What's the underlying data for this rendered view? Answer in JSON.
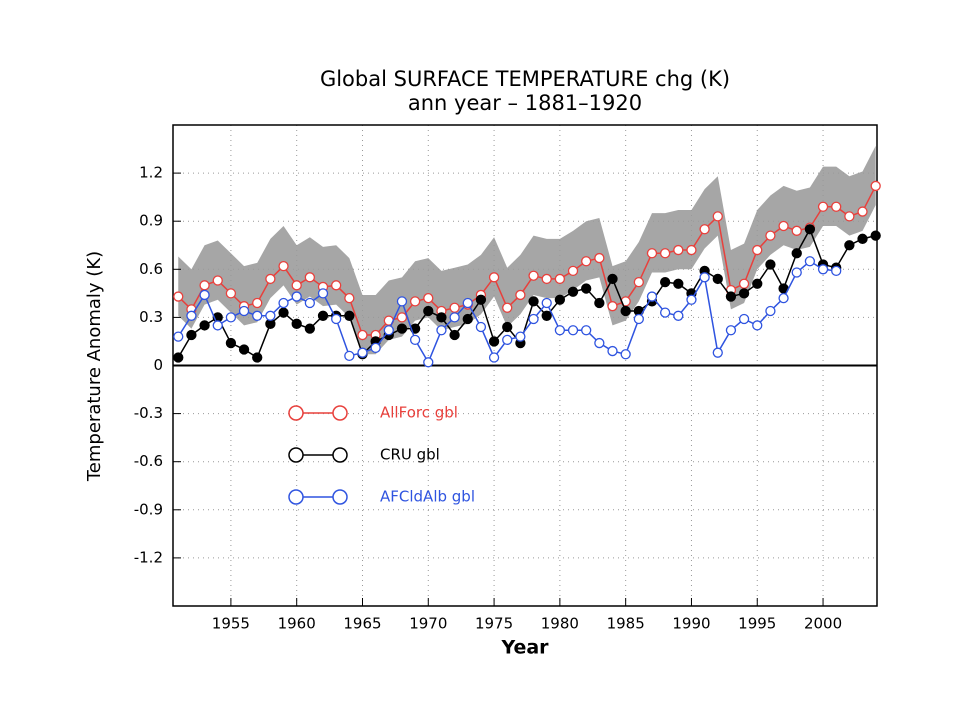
{
  "chart_data": {
    "type": "line",
    "title": "Global SURFACE TEMPERATURE chg (K)",
    "subtitle": "ann year – 1881–1920",
    "x_label": "Year",
    "y_label": "Temperature Anomaly (K)",
    "x": [
      1951,
      1952,
      1953,
      1954,
      1955,
      1956,
      1957,
      1958,
      1959,
      1960,
      1961,
      1962,
      1963,
      1964,
      1965,
      1966,
      1967,
      1968,
      1969,
      1970,
      1971,
      1972,
      1973,
      1974,
      1975,
      1976,
      1977,
      1978,
      1979,
      1980,
      1981,
      1982,
      1983,
      1984,
      1985,
      1986,
      1987,
      1988,
      1989,
      1990,
      1991,
      1992,
      1993,
      1994,
      1995,
      1996,
      1997,
      1998,
      1999,
      2000,
      2001,
      2002,
      2003,
      2004
    ],
    "xlim": [
      1950.6,
      2004.1
    ],
    "xticks": [
      1955,
      1960,
      1965,
      1970,
      1975,
      1980,
      1985,
      1990,
      1995,
      2000
    ],
    "ylim": [
      -1.5,
      1.5
    ],
    "yticks": [
      1.2,
      0.9,
      0.6,
      0.3,
      0,
      -0.3,
      -0.6,
      -0.9,
      -1.2
    ],
    "grid": true,
    "legend": "left",
    "band": {
      "color": "#a6a6a6",
      "upper": [
        0.68,
        0.6,
        0.75,
        0.78,
        0.7,
        0.62,
        0.64,
        0.79,
        0.87,
        0.75,
        0.8,
        0.74,
        0.75,
        0.67,
        0.44,
        0.44,
        0.53,
        0.55,
        0.65,
        0.67,
        0.59,
        0.61,
        0.63,
        0.69,
        0.8,
        0.61,
        0.69,
        0.81,
        0.79,
        0.79,
        0.84,
        0.9,
        0.92,
        0.62,
        0.65,
        0.77,
        0.95,
        0.95,
        0.97,
        0.97,
        1.1,
        1.18,
        0.72,
        0.76,
        0.97,
        1.06,
        1.12,
        1.09,
        1.11,
        1.24,
        1.24,
        1.18,
        1.21,
        1.37
      ],
      "lower": [
        0.31,
        0.23,
        0.38,
        0.41,
        0.33,
        0.25,
        0.27,
        0.42,
        0.5,
        0.38,
        0.43,
        0.37,
        0.38,
        0.3,
        0.07,
        0.07,
        0.16,
        0.18,
        0.28,
        0.3,
        0.22,
        0.24,
        0.26,
        0.32,
        0.43,
        0.24,
        0.32,
        0.44,
        0.42,
        0.42,
        0.47,
        0.53,
        0.55,
        0.25,
        0.28,
        0.4,
        0.58,
        0.58,
        0.6,
        0.6,
        0.73,
        0.81,
        0.35,
        0.39,
        0.6,
        0.69,
        0.75,
        0.72,
        0.74,
        0.87,
        0.87,
        0.81,
        0.84,
        1.0
      ]
    },
    "series": [
      {
        "name": "AllForc gbl",
        "color": "#e8403c",
        "filled": false,
        "values": [
          0.43,
          0.35,
          0.5,
          0.53,
          0.45,
          0.37,
          0.39,
          0.54,
          0.62,
          0.5,
          0.55,
          0.49,
          0.5,
          0.42,
          0.19,
          0.19,
          0.28,
          0.3,
          0.4,
          0.42,
          0.34,
          0.36,
          0.38,
          0.44,
          0.55,
          0.36,
          0.44,
          0.56,
          0.54,
          0.54,
          0.59,
          0.65,
          0.67,
          0.37,
          0.4,
          0.52,
          0.7,
          0.7,
          0.72,
          0.72,
          0.85,
          0.93,
          0.47,
          0.51,
          0.72,
          0.81,
          0.87,
          0.84,
          0.86,
          0.99,
          0.99,
          0.93,
          0.96,
          1.12
        ]
      },
      {
        "name": "CRU gbl",
        "color": "#000000",
        "filled": true,
        "values": [
          0.05,
          0.19,
          0.25,
          0.3,
          0.14,
          0.1,
          0.05,
          0.26,
          0.33,
          0.26,
          0.23,
          0.31,
          0.31,
          0.31,
          0.07,
          0.15,
          0.19,
          0.23,
          0.23,
          0.34,
          0.3,
          0.19,
          0.29,
          0.41,
          0.15,
          0.24,
          0.14,
          0.4,
          0.31,
          0.41,
          0.46,
          0.48,
          0.39,
          0.54,
          0.34,
          0.34,
          0.4,
          0.52,
          0.51,
          0.45,
          0.59,
          0.54,
          0.43,
          0.45,
          0.51,
          0.63,
          0.48,
          0.7,
          0.85,
          0.63,
          0.61,
          0.75,
          0.79,
          0.81
        ]
      },
      {
        "name": "AFCldAlb gbl",
        "color": "#2f54e0",
        "filled": false,
        "values": [
          0.18,
          0.31,
          0.44,
          0.25,
          0.3,
          0.34,
          0.31,
          0.31,
          0.39,
          0.43,
          0.39,
          0.45,
          0.29,
          0.06,
          0.08,
          0.11,
          0.22,
          0.4,
          0.16,
          0.02,
          0.22,
          0.3,
          0.39,
          0.24,
          0.05,
          0.16,
          0.18,
          0.29,
          0.39,
          0.22,
          0.22,
          0.22,
          0.14,
          0.09,
          0.07,
          0.29,
          0.43,
          0.33,
          0.31,
          0.41,
          0.55,
          0.08,
          0.22,
          0.29,
          0.25,
          0.34,
          0.42,
          0.58,
          0.65,
          0.6,
          0.59,
          null,
          null,
          null
        ]
      }
    ]
  }
}
